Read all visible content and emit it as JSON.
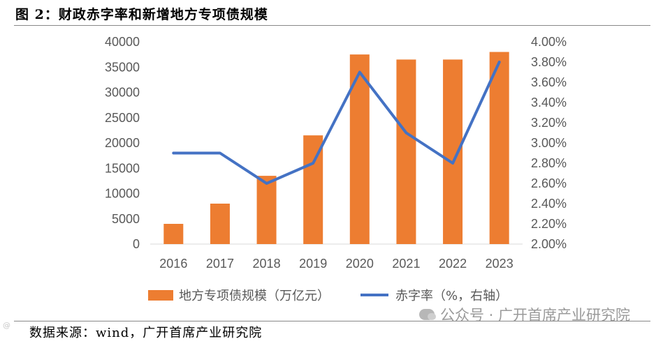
{
  "title": "图 2：财政赤字率和新增地方专项债规模",
  "source": "数据来源：wind，广开首席产业研究院",
  "watermark": "公众号 · 广开首席产业研究院",
  "corner_mark": "@",
  "colors": {
    "bar": "#ED7D31",
    "line": "#4472C4",
    "axis": "#d9d9d9",
    "text": "#595959"
  },
  "chart_data": {
    "type": "bar+line",
    "title": "财政赤字率和新增地方专项债规模",
    "categories": [
      "2016",
      "2017",
      "2018",
      "2019",
      "2020",
      "2021",
      "2022",
      "2023"
    ],
    "series": [
      {
        "name": "地方专项债规模（万亿元）",
        "axis": "left",
        "type": "bar",
        "values": [
          4000,
          8000,
          13500,
          21500,
          37500,
          36500,
          36500,
          38000
        ]
      },
      {
        "name": "赤字率（%，右轴）",
        "axis": "right",
        "type": "line",
        "values": [
          2.9,
          2.9,
          2.6,
          2.8,
          3.7,
          3.1,
          2.8,
          3.8
        ]
      }
    ],
    "left_axis": {
      "min": 0,
      "max": 40000,
      "ticks": [
        "0",
        "5000",
        "10000",
        "15000",
        "20000",
        "25000",
        "30000",
        "35000",
        "40000"
      ]
    },
    "right_axis": {
      "min": 2.0,
      "max": 4.0,
      "ticks": [
        "2.00%",
        "2.20%",
        "2.40%",
        "2.60%",
        "2.80%",
        "3.00%",
        "3.20%",
        "3.40%",
        "3.60%",
        "3.80%",
        "4.00%"
      ]
    },
    "legend_position": "bottom",
    "grid": false
  }
}
